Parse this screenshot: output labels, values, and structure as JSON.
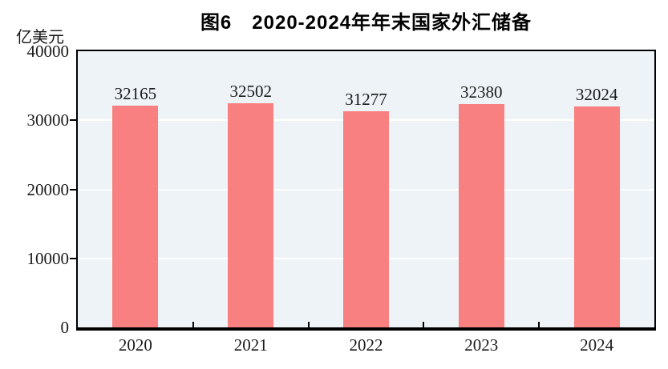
{
  "header": {
    "title": "图6　2020-2024年年末国家外汇储备"
  },
  "y_axis": {
    "unit_label": "亿美元"
  },
  "chart_data": {
    "type": "bar",
    "title": "图6 2020-2024年年末国家外汇储备",
    "categories": [
      "2020",
      "2021",
      "2022",
      "2023",
      "2024"
    ],
    "values": [
      32165,
      32502,
      31277,
      32380,
      32024
    ],
    "data_labels": [
      "32165",
      "32502",
      "31277",
      "32380",
      "32024"
    ],
    "xlabel": "",
    "ylabel": "亿美元",
    "ylim": [
      0,
      40000
    ],
    "yticks": [
      0,
      10000,
      20000,
      30000,
      40000
    ],
    "ytick_labels": [
      "0",
      "10000",
      "20000",
      "30000",
      "40000"
    ],
    "grid": true,
    "grid_color": "#FFFFFF",
    "legend_position": "none",
    "bar_color": "#F98080",
    "plot_background": "#EDF3F7",
    "axis_color": "#000000",
    "text_color": "#1A1A1A"
  }
}
